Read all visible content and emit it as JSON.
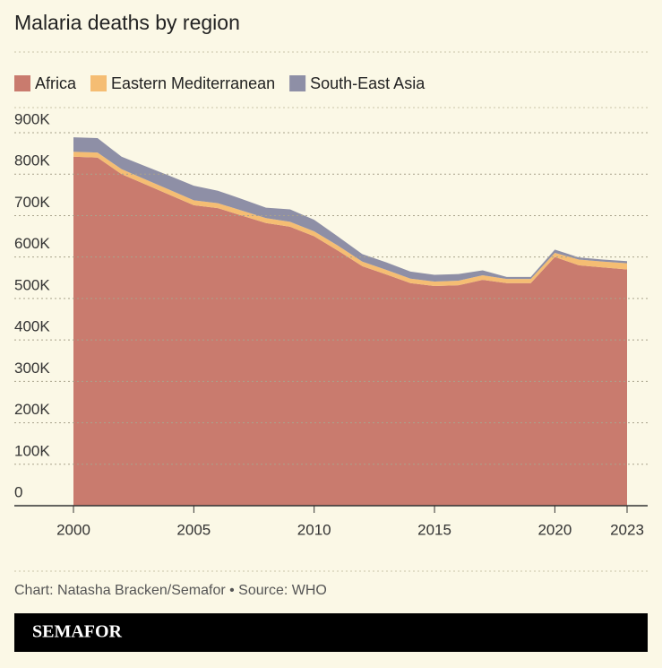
{
  "chart_data": {
    "type": "stacked_area",
    "title": "Malaria deaths by region",
    "x": [
      2000,
      2001,
      2002,
      2003,
      2004,
      2005,
      2006,
      2007,
      2008,
      2009,
      2010,
      2011,
      2012,
      2013,
      2014,
      2015,
      2016,
      2017,
      2018,
      2019,
      2020,
      2021,
      2022,
      2023
    ],
    "series": [
      {
        "name": "Africa",
        "color": "#c97b6e",
        "values": [
          842000,
          840000,
          800000,
          775000,
          750000,
          725000,
          718000,
          700000,
          682000,
          673000,
          650000,
          615000,
          578000,
          558000,
          537000,
          530000,
          532000,
          545000,
          537000,
          537000,
          600000,
          580000,
          575000,
          570000
        ]
      },
      {
        "name": "Eastern Mediterranean",
        "color": "#f5bd73",
        "values": [
          12000,
          12000,
          12000,
          12000,
          12000,
          12000,
          12000,
          12000,
          12000,
          12000,
          12000,
          12000,
          11000,
          11000,
          11000,
          11000,
          11000,
          11000,
          10000,
          10000,
          10000,
          14000,
          14000,
          15000
        ]
      },
      {
        "name": "South-East Asia",
        "color": "#8e8fa6",
        "values": [
          35000,
          35000,
          30000,
          32000,
          34000,
          35000,
          30000,
          28000,
          25000,
          30000,
          28000,
          22000,
          18000,
          18000,
          17000,
          16000,
          16000,
          12000,
          5000,
          5000,
          8000,
          5000,
          5000,
          5000
        ]
      }
    ],
    "xlim": [
      2000,
      2023
    ],
    "xticks": [
      2000,
      2005,
      2010,
      2015,
      2020,
      2023
    ],
    "ylim": [
      0,
      900000
    ],
    "yticks": [
      0,
      {
        "value": 100000,
        "label": "100K"
      },
      {
        "value": 200000,
        "label": "200K"
      },
      {
        "value": 300000,
        "label": "300K"
      },
      {
        "value": 400000,
        "label": "400K"
      },
      {
        "value": 500000,
        "label": "500K"
      },
      {
        "value": 600000,
        "label": "600K"
      },
      {
        "value": 700000,
        "label": "700K"
      },
      {
        "value": 800000,
        "label": "800K"
      },
      {
        "value": 900000,
        "label": "900K"
      }
    ],
    "grid": true,
    "footer": "Chart: Natasha Bracken/Semafor • Source: WHO",
    "brand": "SEMAFOR"
  }
}
